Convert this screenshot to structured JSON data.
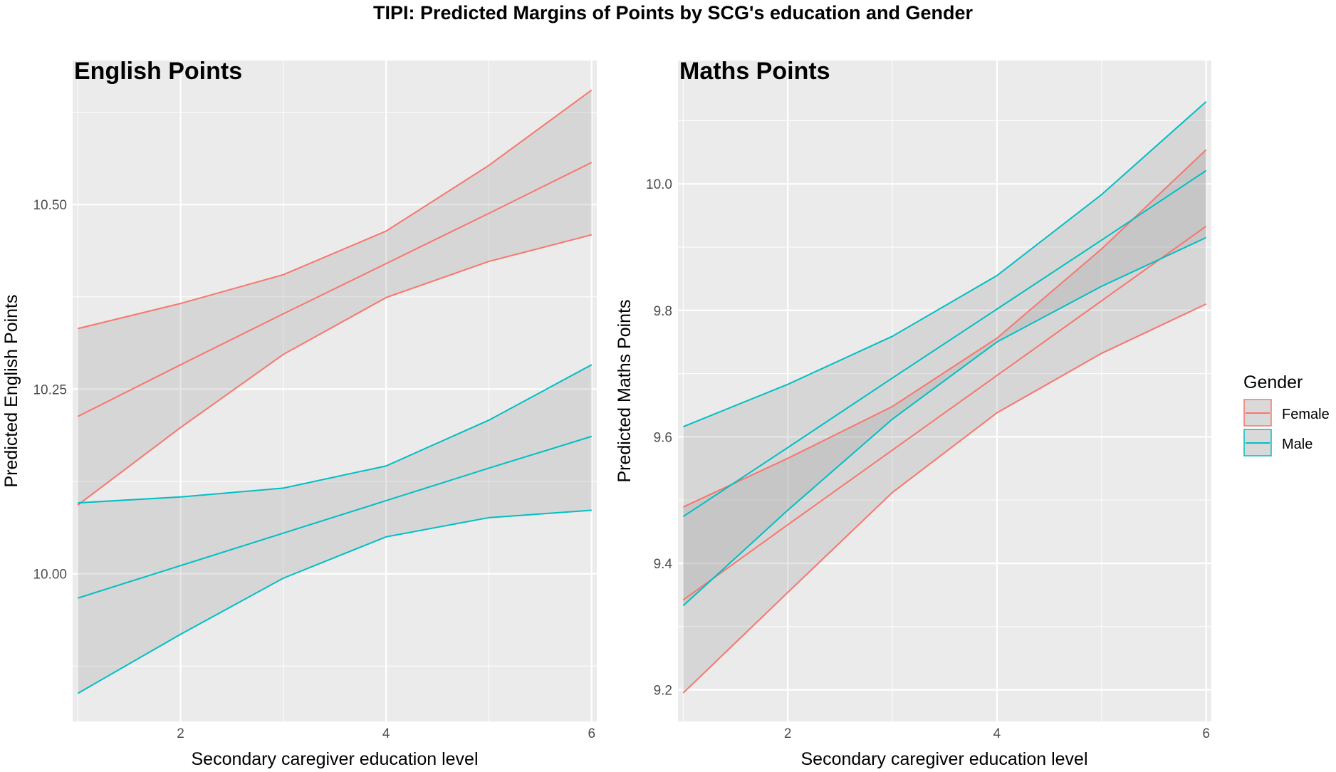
{
  "main_title": "TIPI: Predicted Margins of Points by SCG's education and Gender",
  "legend": {
    "title": "Gender",
    "items": [
      {
        "label": "Female",
        "color": "#F8766D"
      },
      {
        "label": "Male",
        "color": "#00BFC4"
      }
    ]
  },
  "chart_data": [
    {
      "type": "line",
      "title": "English Points",
      "xlabel": "Secondary caregiver education level",
      "ylabel": "Predicted English Points",
      "xlim": [
        0.95,
        6.05
      ],
      "ylim": [
        9.8,
        10.695
      ],
      "xticks": [
        2,
        4,
        6
      ],
      "xtick_labels": [
        "2",
        "4",
        "6"
      ],
      "yticks": [
        10.0,
        10.25,
        10.5
      ],
      "ytick_labels": [
        "10.00",
        "10.25",
        "10.50"
      ],
      "grid": true,
      "x": [
        1,
        2,
        3,
        4,
        5,
        6
      ],
      "series": [
        {
          "name": "Female",
          "color": "#F8766D",
          "values": [
            10.213,
            10.283,
            10.352,
            10.42,
            10.488,
            10.557
          ],
          "lower": [
            10.093,
            10.198,
            10.297,
            10.374,
            10.423,
            10.459
          ],
          "upper": [
            10.332,
            10.366,
            10.405,
            10.464,
            10.553,
            10.655
          ]
        },
        {
          "name": "Male",
          "color": "#00BFC4",
          "values": [
            9.967,
            10.011,
            10.055,
            10.099,
            10.143,
            10.186
          ],
          "lower": [
            9.838,
            9.918,
            9.994,
            10.05,
            10.076,
            10.086
          ],
          "upper": [
            10.096,
            10.104,
            10.116,
            10.146,
            10.208,
            10.283
          ]
        }
      ]
    },
    {
      "type": "line",
      "title": "Maths Points",
      "xlabel": "Secondary caregiver education level",
      "ylabel": "Predicted Maths Points",
      "xlim": [
        0.95,
        6.05
      ],
      "ylim": [
        9.15,
        10.195
      ],
      "xticks": [
        2,
        4,
        6
      ],
      "xtick_labels": [
        "2",
        "4",
        "6"
      ],
      "yticks": [
        9.2,
        9.4,
        9.6,
        9.8,
        10.0
      ],
      "ytick_labels": [
        "9.2",
        "9.4",
        "9.6",
        "9.8",
        "10.0"
      ],
      "grid": true,
      "x": [
        1,
        2,
        3,
        4,
        5,
        6
      ],
      "series": [
        {
          "name": "Female",
          "color": "#F8766D",
          "values": [
            9.342,
            9.461,
            9.579,
            9.697,
            9.815,
            9.933
          ],
          "lower": [
            9.195,
            9.354,
            9.512,
            9.638,
            9.732,
            9.81
          ],
          "upper": [
            9.489,
            9.566,
            9.648,
            9.756,
            9.897,
            10.054
          ]
        },
        {
          "name": "Male",
          "color": "#00BFC4",
          "values": [
            9.474,
            9.583,
            9.693,
            9.802,
            9.911,
            10.021
          ],
          "lower": [
            9.333,
            9.484,
            9.628,
            9.75,
            9.838,
            9.915
          ],
          "upper": [
            9.616,
            9.683,
            9.759,
            9.855,
            9.983,
            10.13
          ]
        }
      ]
    }
  ]
}
